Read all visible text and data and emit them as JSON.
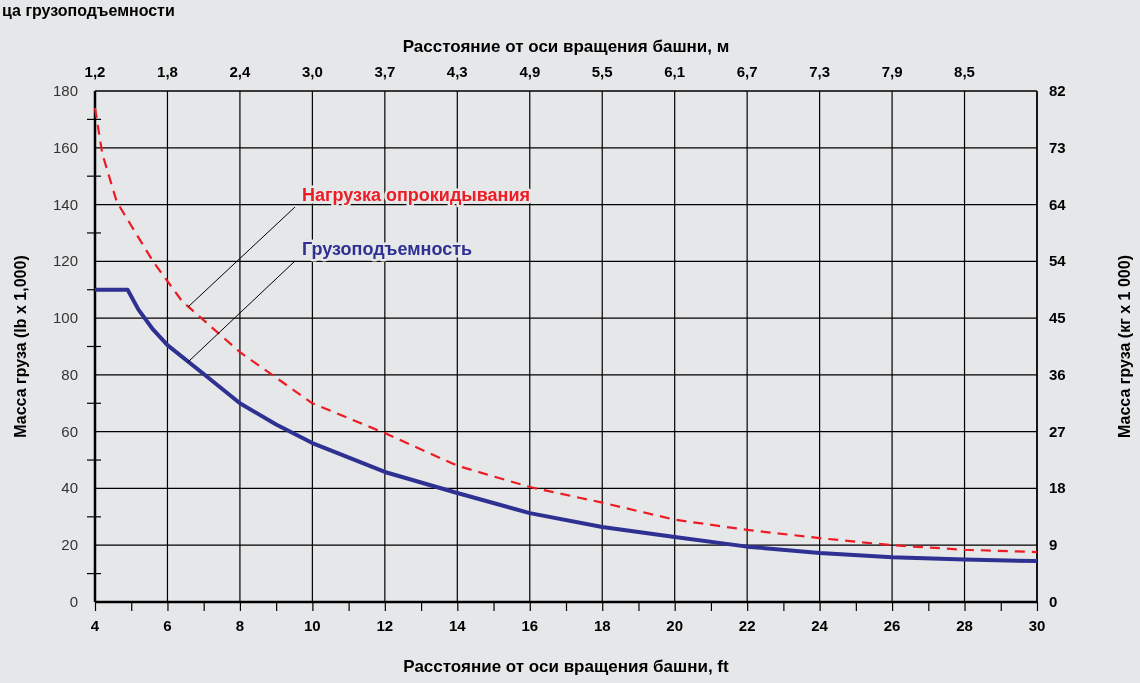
{
  "chart_data": {
    "type": "line",
    "title": "ца грузоподъемности",
    "xlabel": "Расстояние от оси вращения башни, ft",
    "x2label": "Расстояние от оси вращения башни, м",
    "ylabel": "Масса груза (lb x 1,000)",
    "y2label": "Масса груза (кг x 1 000)",
    "xlim": [
      4,
      30
    ],
    "xticks": [
      4,
      {
        "value": 5,
        "label": null
      },
      6,
      {
        "value": 7,
        "label": null
      },
      8,
      {
        "value": 9,
        "label": null
      },
      10,
      {
        "value": 11,
        "label": null
      },
      12,
      {
        "value": 13,
        "label": null
      },
      14,
      {
        "value": 15,
        "label": null
      },
      16,
      {
        "value": 17,
        "label": null
      },
      18,
      {
        "value": 19,
        "label": null
      },
      20,
      {
        "value": 21,
        "label": null
      },
      22,
      {
        "value": 23,
        "label": null
      },
      24,
      {
        "value": 25,
        "label": null
      },
      26,
      {
        "value": 27,
        "label": null
      },
      28,
      {
        "value": 29,
        "label": null
      },
      30
    ],
    "x2lim": [
      1.219,
      9.144
    ],
    "x2ticks": [
      {
        "value": 1.219,
        "label": "1,2"
      },
      {
        "value": 1.829,
        "label": "1,8"
      },
      {
        "value": 2.438,
        "label": "2,4"
      },
      {
        "value": 3.048,
        "label": "3,0"
      },
      {
        "value": 3.658,
        "label": "3,7"
      },
      {
        "value": 4.267,
        "label": "4,3"
      },
      {
        "value": 4.877,
        "label": "4,9"
      },
      {
        "value": 5.486,
        "label": "5,5"
      },
      {
        "value": 6.096,
        "label": "6,1"
      },
      {
        "value": 6.706,
        "label": "6,7"
      },
      {
        "value": 7.315,
        "label": "7,3"
      },
      {
        "value": 7.925,
        "label": "7,9"
      },
      {
        "value": 8.534,
        "label": "8,5"
      }
    ],
    "ylim": [
      0,
      180
    ],
    "yticks": [
      0,
      {
        "value": 10,
        "label": null
      },
      20,
      {
        "value": 30,
        "label": null
      },
      40,
      {
        "value": 50,
        "label": null
      },
      60,
      {
        "value": 70,
        "label": null
      },
      80,
      {
        "value": 90,
        "label": null
      },
      100,
      {
        "value": 110,
        "label": null
      },
      120,
      {
        "value": 130,
        "label": null
      },
      140,
      {
        "value": 150,
        "label": null
      },
      160,
      {
        "value": 170,
        "label": null
      },
      180
    ],
    "y2lim": [
      0,
      81.647
    ],
    "y2ticks": [
      0,
      {
        "value": 9.072,
        "label": "9"
      },
      {
        "value": 18.144,
        "label": "18"
      },
      {
        "value": 27.216,
        "label": "27"
      },
      {
        "value": 36.287,
        "label": "36"
      },
      {
        "value": 45.359,
        "label": "45"
      },
      {
        "value": 54.431,
        "label": "54"
      },
      {
        "value": 63.503,
        "label": "64"
      },
      {
        "value": 72.575,
        "label": "73"
      },
      {
        "value": 81.647,
        "label": "82"
      }
    ],
    "grid": true,
    "legend": false,
    "marker": "none",
    "series": [
      {
        "name": "Нагрузка опрокидывания",
        "color": "#ed1c24",
        "line_style": "dashed",
        "x": [
          4,
          4.2,
          4.6,
          5.6,
          6.4,
          8,
          10,
          12,
          14,
          16,
          18,
          20,
          22,
          24,
          26,
          28,
          30
        ],
        "values": [
          174,
          158,
          141,
          120,
          106,
          88,
          70,
          59.5,
          48,
          40.5,
          35,
          29,
          25.4,
          22.5,
          20,
          18.4,
          17.6
        ]
      },
      {
        "name": "Грузоподъемность",
        "color": "#2e3192",
        "line_style": "solid",
        "x": [
          4,
          4.9,
          5.2,
          5.6,
          6,
          7,
          8,
          9,
          10,
          12,
          14,
          16,
          18,
          20,
          22,
          24,
          26,
          28,
          30
        ],
        "values": [
          110,
          110,
          103,
          96,
          90.5,
          80.3,
          70,
          62.5,
          56,
          45.8,
          38.4,
          31.3,
          26.4,
          22.9,
          19.5,
          17.3,
          15.8,
          15,
          14.4
        ]
      }
    ]
  }
}
